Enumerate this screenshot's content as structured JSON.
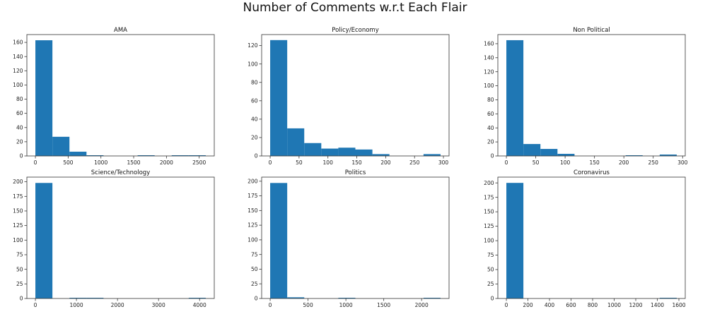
{
  "figure": {
    "suptitle": "Number of Comments w.r.t Each Flair"
  },
  "colors": {
    "bar": "#1f77b4",
    "axis": "#333333",
    "text": "#222222"
  },
  "chart_data": [
    {
      "type": "bar",
      "title": "AMA",
      "bins_start": 0,
      "bin_width": 260,
      "values": [
        163,
        27,
        6,
        1,
        0,
        0,
        1,
        0,
        1,
        1
      ],
      "xlim": [
        -130,
        2730
      ],
      "ylim": [
        0,
        171
      ],
      "xticks": [
        0,
        500,
        1000,
        1500,
        2000,
        2500
      ],
      "yticks": [
        0,
        20,
        40,
        60,
        80,
        100,
        120,
        140,
        160
      ]
    },
    {
      "type": "bar",
      "title": "Policy/Economy",
      "bins_start": 0,
      "bin_width": 29.5,
      "values": [
        126,
        30,
        14,
        8,
        9,
        7,
        2,
        0,
        0,
        2
      ],
      "xlim": [
        -14.75,
        309.75
      ],
      "ylim": [
        0,
        132
      ],
      "xticks": [
        0,
        50,
        100,
        150,
        200,
        250,
        300
      ],
      "yticks": [
        0,
        20,
        40,
        60,
        80,
        100,
        120
      ]
    },
    {
      "type": "bar",
      "title": "Non Political",
      "bins_start": 0,
      "bin_width": 29,
      "values": [
        165,
        17,
        10,
        3,
        0,
        0,
        0,
        1,
        0,
        2
      ],
      "xlim": [
        -14.5,
        304.5
      ],
      "ylim": [
        0,
        173
      ],
      "xticks": [
        0,
        50,
        100,
        150,
        200,
        250,
        300
      ],
      "yticks": [
        0,
        20,
        40,
        60,
        80,
        100,
        120,
        140,
        160
      ]
    },
    {
      "type": "bar",
      "title": "Science/Technology",
      "bins_start": 0,
      "bin_width": 415,
      "values": [
        198,
        0,
        1,
        1,
        0,
        0,
        0,
        0,
        0,
        1
      ],
      "xlim": [
        -207.5,
        4357.5
      ],
      "ylim": [
        0,
        208
      ],
      "xticks": [
        0,
        1000,
        2000,
        3000,
        4000
      ],
      "yticks": [
        0,
        25,
        50,
        75,
        100,
        125,
        150,
        175,
        200
      ]
    },
    {
      "type": "bar",
      "title": "Politics",
      "bins_start": 0,
      "bin_width": 225,
      "values": [
        197,
        2,
        0,
        0,
        1,
        0,
        0,
        0,
        0,
        1
      ],
      "xlim": [
        -112.5,
        2362.5
      ],
      "ylim": [
        0,
        207
      ],
      "xticks": [
        0,
        500,
        1000,
        1500,
        2000
      ],
      "yticks": [
        0,
        25,
        50,
        75,
        100,
        125,
        150,
        175,
        200
      ]
    },
    {
      "type": "bar",
      "title": "Coronavirus",
      "bins_start": 0,
      "bin_width": 158,
      "values": [
        200,
        0,
        0,
        0,
        0,
        0,
        0,
        0,
        0,
        1
      ],
      "xlim": [
        -79,
        1659
      ],
      "ylim": [
        0,
        210
      ],
      "xticks": [
        0,
        200,
        400,
        600,
        800,
        1000,
        1200,
        1400,
        1600
      ],
      "yticks": [
        0,
        25,
        50,
        75,
        100,
        125,
        150,
        175,
        200
      ]
    }
  ]
}
